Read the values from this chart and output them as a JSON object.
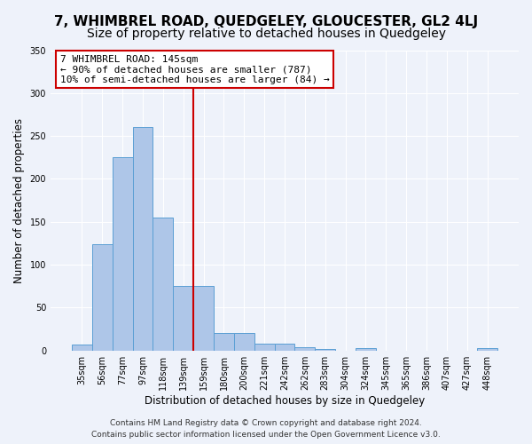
{
  "title": "7, WHIMBREL ROAD, QUEDGELEY, GLOUCESTER, GL2 4LJ",
  "subtitle": "Size of property relative to detached houses in Quedgeley",
  "xlabel": "Distribution of detached houses by size in Quedgeley",
  "ylabel": "Number of detached properties",
  "bar_values": [
    7,
    124,
    225,
    260,
    155,
    75,
    75,
    20,
    20,
    8,
    8,
    4,
    2,
    0,
    3,
    0,
    0,
    0,
    0,
    0,
    3
  ],
  "bin_labels": [
    "35sqm",
    "56sqm",
    "77sqm",
    "97sqm",
    "118sqm",
    "139sqm",
    "159sqm",
    "180sqm",
    "200sqm",
    "221sqm",
    "242sqm",
    "262sqm",
    "283sqm",
    "304sqm",
    "324sqm",
    "345sqm",
    "365sqm",
    "386sqm",
    "407sqm",
    "427sqm",
    "448sqm"
  ],
  "bar_color": "#aec6e8",
  "bar_edge_color": "#5a9fd4",
  "red_line_x": 5.5,
  "annotation_title": "7 WHIMBREL ROAD: 145sqm",
  "annotation_line1": "← 90% of detached houses are smaller (787)",
  "annotation_line2": "10% of semi-detached houses are larger (84) →",
  "annotation_box_color": "#ffffff",
  "annotation_box_edge_color": "#cc0000",
  "red_line_color": "#cc0000",
  "ylim": [
    0,
    350
  ],
  "yticks": [
    0,
    50,
    100,
    150,
    200,
    250,
    300,
    350
  ],
  "footer1": "Contains HM Land Registry data © Crown copyright and database right 2024.",
  "footer2": "Contains public sector information licensed under the Open Government Licence v3.0.",
  "background_color": "#eef2fa",
  "axes_background_color": "#eef2fa",
  "grid_color": "#ffffff",
  "title_fontsize": 11,
  "subtitle_fontsize": 10,
  "label_fontsize": 8.5,
  "tick_fontsize": 7,
  "annotation_fontsize": 8,
  "footer_fontsize": 6.5
}
